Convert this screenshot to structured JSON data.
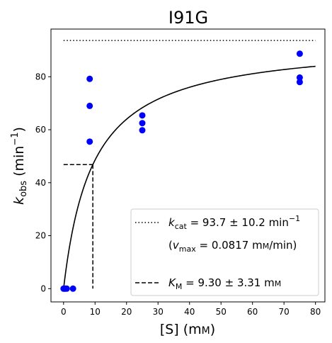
{
  "chart_data": {
    "type": "scatter",
    "title": "I91G",
    "xlabel": {
      "prefix": "[S] (m",
      "unit_small": "M",
      "suffix": ")"
    },
    "ylabel": {
      "k": "k",
      "sub": "obs",
      "unit": " (min",
      "sup": "−1",
      "close": ")"
    },
    "xlim": [
      -4,
      83
    ],
    "ylim": [
      -5,
      98
    ],
    "xticks": [
      0,
      10,
      20,
      30,
      40,
      50,
      60,
      70,
      80
    ],
    "yticks": [
      0,
      20,
      40,
      60,
      80
    ],
    "grid": false,
    "scatter": {
      "color": "#0000ff",
      "x": [
        0,
        0.2,
        0.5,
        1,
        3,
        8.3,
        8.3,
        8.3,
        25,
        25,
        25,
        75,
        75,
        75
      ],
      "y": [
        0,
        0,
        0,
        0,
        0,
        55.5,
        69,
        79.2,
        59.8,
        62.5,
        65.4,
        78,
        79.7,
        88.7
      ]
    },
    "fit": {
      "type": "michaelis-menten",
      "kcat": 93.7,
      "km": 9.3,
      "x_range": [
        0,
        80
      ],
      "color": "#000000"
    },
    "kcat_line": {
      "style": "dotted",
      "y": 93.7,
      "x_range": [
        0,
        80
      ]
    },
    "km_line": {
      "style": "dashed",
      "x": 9.3,
      "y": 46.85
    },
    "legend": {
      "placement": "bottom-right",
      "kcat": {
        "k": "k",
        "sub": "cat",
        "text": " = 93.7 ± 10.2 min",
        "sup": "−1"
      },
      "vmax": {
        "open": "(",
        "v": "v",
        "sub": "max",
        "text": " = 0.0817 m",
        "unit_small": "M",
        "close": "/min)"
      },
      "km": {
        "k": "K",
        "sub": "M",
        "text": " = 9.30 ± 3.31 m",
        "unit_small": "M"
      }
    }
  }
}
